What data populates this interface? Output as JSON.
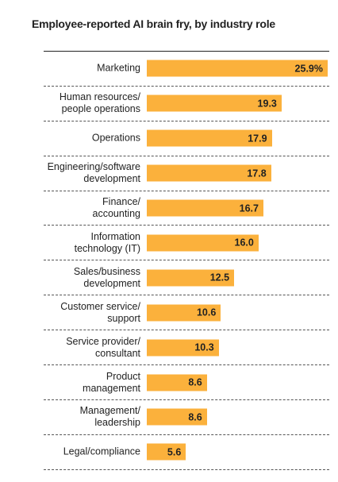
{
  "chart_data": {
    "type": "bar",
    "orientation": "horizontal",
    "title": "Employee-reported AI brain fry, by industry role",
    "categories": [
      "Marketing",
      "Human resources/\npeople operations",
      "Operations",
      "Engineering/software\ndevelopment",
      "Finance/\naccounting",
      "Information\ntechnology (IT)",
      "Sales/business\ndevelopment",
      "Customer service/\nsupport",
      "Service provider/\nconsultant",
      "Product\nmanagement",
      "Management/\nleadership",
      "Legal/compliance"
    ],
    "values": [
      25.9,
      19.3,
      17.9,
      17.8,
      16.7,
      16.0,
      12.5,
      10.6,
      10.3,
      8.6,
      8.6,
      5.6
    ],
    "value_labels": [
      "25.9%",
      "19.3",
      "17.9",
      "17.8",
      "16.7",
      "16.0",
      "12.5",
      "10.6",
      "10.3",
      "8.6",
      "8.6",
      "5.6"
    ],
    "color": "#fbb13c"
  }
}
